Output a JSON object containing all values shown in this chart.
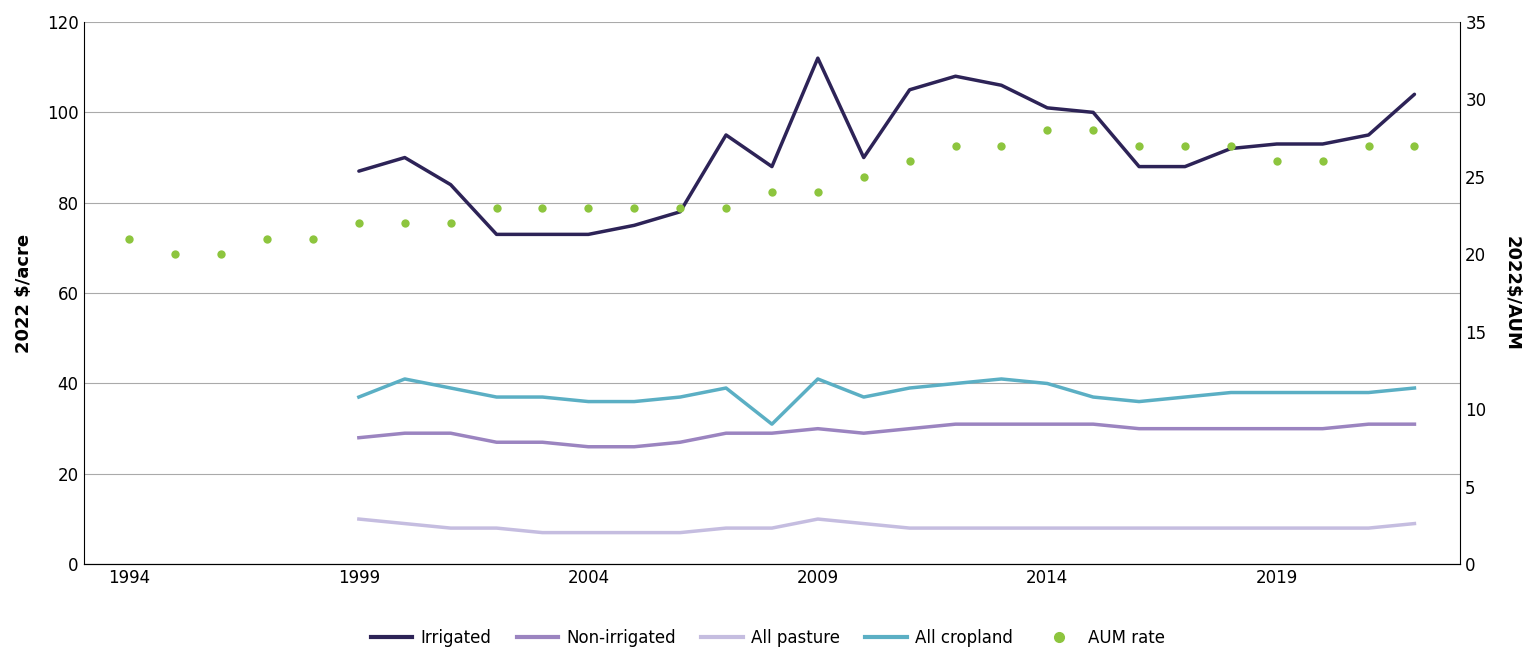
{
  "years": [
    1994,
    1995,
    1996,
    1997,
    1998,
    1999,
    2000,
    2001,
    2002,
    2003,
    2004,
    2005,
    2006,
    2007,
    2008,
    2009,
    2010,
    2011,
    2012,
    2013,
    2014,
    2015,
    2016,
    2017,
    2018,
    2019,
    2020,
    2021,
    2022
  ],
  "irrigated": [
    null,
    null,
    null,
    null,
    null,
    87,
    90,
    84,
    73,
    73,
    73,
    75,
    78,
    95,
    88,
    112,
    90,
    105,
    108,
    106,
    101,
    100,
    88,
    88,
    92,
    93,
    93,
    95,
    104
  ],
  "non_irrigated": [
    null,
    null,
    null,
    null,
    null,
    28,
    29,
    29,
    27,
    27,
    26,
    26,
    27,
    29,
    29,
    30,
    29,
    30,
    31,
    31,
    31,
    31,
    30,
    30,
    30,
    30,
    30,
    31,
    31
  ],
  "all_pasture": [
    null,
    null,
    null,
    null,
    null,
    10,
    9,
    8,
    8,
    7,
    7,
    7,
    7,
    8,
    8,
    10,
    9,
    8,
    8,
    8,
    8,
    8,
    8,
    8,
    8,
    8,
    8,
    8,
    9
  ],
  "all_cropland": [
    null,
    null,
    null,
    null,
    null,
    37,
    41,
    39,
    37,
    37,
    36,
    36,
    37,
    39,
    31,
    41,
    37,
    39,
    40,
    41,
    40,
    37,
    36,
    37,
    38,
    38,
    38,
    38,
    39
  ],
  "aum_rate_years": [
    1994,
    1995,
    1996,
    1997,
    1998,
    1999,
    2000,
    2001,
    2002,
    2003,
    2004,
    2005,
    2006,
    2007,
    2008,
    2009,
    2010,
    2011,
    2012,
    2013,
    2014,
    2015,
    2016,
    2017,
    2018,
    2019,
    2020,
    2021,
    2022
  ],
  "aum_rate": [
    21,
    20,
    20,
    21,
    21,
    22,
    22,
    22,
    23,
    23,
    23,
    23,
    23,
    23,
    24,
    24,
    25,
    26,
    27,
    27,
    28,
    28,
    27,
    27,
    27,
    26,
    26,
    27,
    27
  ],
  "irrigated_color": "#2d2357",
  "non_irrigated_color": "#9b84c0",
  "all_pasture_color": "#c5bde0",
  "all_cropland_color": "#5bafc4",
  "aum_rate_color": "#8dc53e",
  "ylabel_left": "2022 $/acre",
  "ylabel_right": "2022$/AUM",
  "ylim_left": [
    0,
    120
  ],
  "ylim_right": [
    0,
    35
  ],
  "yticks_left": [
    0,
    20,
    40,
    60,
    80,
    100,
    120
  ],
  "yticks_right": [
    0,
    5,
    10,
    15,
    20,
    25,
    30,
    35
  ],
  "xlim": [
    1993,
    2023
  ],
  "xticks": [
    1994,
    1999,
    2004,
    2009,
    2014,
    2019
  ],
  "legend_labels": [
    "Irrigated",
    "Non-irrigated",
    "All pasture",
    "All cropland",
    "AUM rate"
  ],
  "background_color": "#ffffff",
  "linewidth_main": 2.5
}
